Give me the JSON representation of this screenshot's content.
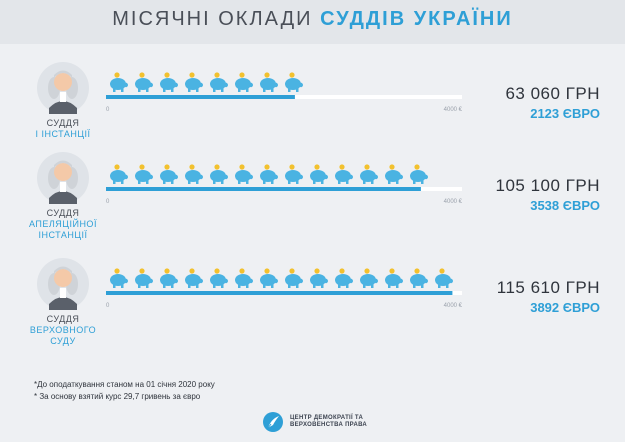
{
  "title": {
    "part1": "МІСЯЧНІ ОКЛАДИ",
    "part2": "СУДДІВ УКРАЇНИ"
  },
  "colors": {
    "accent": "#2e9fd6",
    "track": "#ffffff",
    "piggy": "#4ab3e2",
    "coin": "#f2c12e"
  },
  "chart_data": {
    "type": "bar",
    "orientation": "horizontal",
    "categories": [
      "СУДДЯ І ІНСТАНЦІЇ",
      "СУДДЯ АПЕЛЯЦІЙНОЇ ІНСТАНЦІЇ",
      "СУДДЯ ВЕРХОВНОГО СУДУ"
    ],
    "series": [
      {
        "values": [
          2123,
          3538,
          3892
        ]
      }
    ],
    "xlim": [
      0,
      4000
    ],
    "axis_min_label": "0",
    "axis_max_label": "4000 €",
    "piggy_icon_counts": [
      8,
      13,
      14
    ]
  },
  "rows": [
    {
      "label1": "СУДДЯ",
      "label2": [
        "І ІНСТАНЦІЇ"
      ],
      "uah": "63 060 ГРН",
      "eur": "2123 ЄВРО"
    },
    {
      "label1": "СУДДЯ",
      "label2": [
        "АПЕЛЯЦІЙНОЇ",
        "ІНСТАНЦІЇ"
      ],
      "uah": "105 100 ГРН",
      "eur": "3538 ЄВРО"
    },
    {
      "label1": "СУДДЯ",
      "label2": [
        "ВЕРХОВНОГО",
        "СУДУ"
      ],
      "uah": "115 610 ГРН",
      "eur": "3892 ЄВРО"
    }
  ],
  "notes": [
    "*До оподаткування станом на 01 січня 2020 року",
    "* За основу взятий курс 29,7 гривень за євро"
  ],
  "org": {
    "line1": "ЦЕНТР ДЕМОКРАТІЇ ТА",
    "line2": "ВЕРХОВЕНСТВА ПРАВА",
    "logo_icon": "quill-logo-icon"
  }
}
